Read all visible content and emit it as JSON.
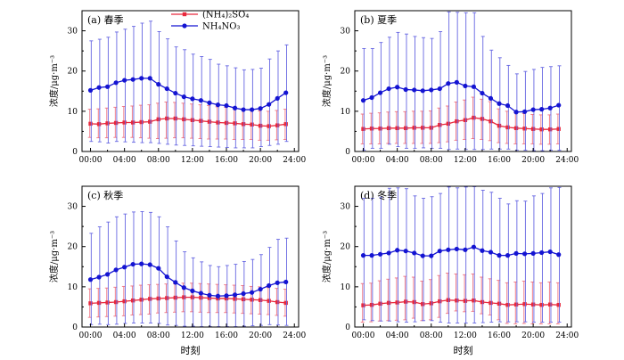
{
  "x_axis_label": "时刻",
  "legend": [
    {
      "label": "(NH₄)₂SO₄",
      "color": "#e8283c",
      "marker": "square"
    },
    {
      "label": "NH₄NO₃",
      "color": "#1414d2",
      "marker": "circle"
    }
  ],
  "chart_data": [
    {
      "type": "line",
      "title": "(a) 春季",
      "ylabel": "浓度/μg·m⁻³",
      "xlabel": "",
      "ylim": [
        0,
        35
      ],
      "yticks": [
        0,
        10,
        20,
        30
      ],
      "xlim": [
        -1,
        24.5
      ],
      "xtick_values": [
        0,
        4,
        8,
        12,
        16,
        20,
        24
      ],
      "xtick_labels": [
        "00:00",
        "04:00",
        "08:00",
        "12:00",
        "16:00",
        "20:00",
        "24:00"
      ],
      "x": [
        0,
        1,
        2,
        3,
        4,
        5,
        6,
        7,
        8,
        9,
        10,
        11,
        12,
        13,
        14,
        15,
        16,
        17,
        18,
        19,
        20,
        21,
        22,
        23
      ],
      "legend_position": "top-center",
      "series": [
        {
          "name": "(NH₄)₂SO₄",
          "values": [
            6.9,
            6.8,
            7.0,
            7.1,
            7.2,
            7.2,
            7.3,
            7.4,
            8.0,
            8.2,
            8.2,
            8.0,
            7.8,
            7.6,
            7.4,
            7.2,
            7.1,
            7.0,
            6.8,
            6.7,
            6.4,
            6.3,
            6.5,
            6.8
          ],
          "upper": [
            10.5,
            10.6,
            10.8,
            11.0,
            11.2,
            11.3,
            11.5,
            11.6,
            12.0,
            12.3,
            12.2,
            12.0,
            11.8,
            11.6,
            11.4,
            11.1,
            11.0,
            10.8,
            10.6,
            10.3,
            10.1,
            10.0,
            10.2,
            10.5
          ],
          "lower": [
            3.5,
            3.4,
            3.4,
            3.5,
            3.5,
            3.5,
            3.4,
            3.3,
            3.2,
            3.3,
            3.4,
            3.4,
            3.3,
            3.2,
            3.1,
            3.1,
            3.1,
            3.0,
            3.0,
            3.0,
            2.8,
            2.8,
            2.9,
            3.0
          ]
        },
        {
          "name": "NH₄NO₃",
          "values": [
            15.2,
            15.9,
            16.1,
            17.1,
            17.7,
            17.9,
            18.2,
            18.2,
            16.7,
            15.6,
            14.5,
            13.6,
            13.1,
            12.7,
            12.1,
            11.6,
            11.4,
            10.8,
            10.4,
            10.4,
            10.7,
            11.7,
            13.2,
            14.6
          ],
          "upper": [
            27.5,
            27.9,
            28.4,
            29.7,
            30.4,
            31.1,
            31.9,
            32.4,
            29.8,
            28.0,
            26.0,
            25.3,
            24.2,
            23.6,
            22.9,
            21.7,
            21.3,
            20.8,
            20.3,
            20.4,
            20.7,
            23.0,
            25.0,
            26.5
          ],
          "lower": [
            2.5,
            2.4,
            2.1,
            2.5,
            2.4,
            2.3,
            2.2,
            2.2,
            2.0,
            1.8,
            1.6,
            1.5,
            1.4,
            1.3,
            1.2,
            1.1,
            1.0,
            0.9,
            0.9,
            0.9,
            1.2,
            1.5,
            1.8,
            2.5
          ]
        }
      ]
    },
    {
      "type": "line",
      "title": "(b) 夏季",
      "ylabel": "浓度/μg·m⁻³",
      "xlabel": "",
      "ylim": [
        0,
        35
      ],
      "yticks": [
        0,
        10,
        20,
        30
      ],
      "xlim": [
        -1,
        24.5
      ],
      "xtick_values": [
        0,
        4,
        8,
        12,
        16,
        20,
        24
      ],
      "xtick_labels": [
        "00:00",
        "04:00",
        "08:00",
        "12:00",
        "16:00",
        "20:00",
        "24:00"
      ],
      "x": [
        0,
        1,
        2,
        3,
        4,
        5,
        6,
        7,
        8,
        9,
        10,
        11,
        12,
        13,
        14,
        15,
        16,
        17,
        18,
        19,
        20,
        21,
        22,
        23
      ],
      "series": [
        {
          "name": "(NH₄)₂SO₄",
          "values": [
            5.6,
            5.7,
            5.7,
            5.8,
            5.8,
            5.8,
            5.9,
            5.9,
            5.9,
            6.6,
            6.9,
            7.5,
            7.8,
            8.4,
            8.1,
            7.5,
            6.4,
            6.0,
            5.8,
            5.7,
            5.6,
            5.5,
            5.5,
            5.6
          ],
          "upper": [
            9.3,
            9.5,
            9.6,
            9.8,
            9.9,
            9.9,
            10.0,
            10.0,
            10.1,
            10.8,
            11.3,
            12.3,
            12.8,
            13.5,
            13.0,
            12.4,
            10.6,
            10.0,
            9.6,
            9.4,
            9.2,
            9.1,
            9.1,
            9.3
          ],
          "lower": [
            1.9,
            1.9,
            1.9,
            2.0,
            2.0,
            2.0,
            2.0,
            2.0,
            2.0,
            2.2,
            2.4,
            2.8,
            3.0,
            3.2,
            3.0,
            2.7,
            2.2,
            2.0,
            1.9,
            1.9,
            1.9,
            1.8,
            1.8,
            1.9
          ]
        },
        {
          "name": "NH₄NO₃",
          "values": [
            12.7,
            13.4,
            14.6,
            15.6,
            16.0,
            15.4,
            15.3,
            15.1,
            15.3,
            15.6,
            16.9,
            17.2,
            16.3,
            16.1,
            14.5,
            13.2,
            11.9,
            11.4,
            9.8,
            9.9,
            10.4,
            10.5,
            10.8,
            11.5
          ],
          "upper": [
            25.6,
            25.6,
            27.1,
            28.4,
            29.6,
            29.2,
            28.6,
            28.3,
            28.1,
            29.8,
            34.7,
            34.6,
            34.5,
            34.5,
            28.6,
            25.2,
            23.3,
            21.4,
            19.3,
            19.9,
            20.4,
            20.9,
            21.1,
            21.3
          ],
          "lower": [
            0.3,
            0.8,
            0.8,
            1.8,
            1.2,
            0.8,
            0.8,
            0.9,
            0.8,
            0.8,
            0.5,
            0.6,
            0.5,
            0.5,
            0.5,
            0.6,
            0.6,
            0.6,
            0.3,
            0.3,
            0.2,
            0.2,
            0.3,
            0.3
          ]
        }
      ]
    },
    {
      "type": "line",
      "title": "(c) 秋季",
      "ylabel": "浓度/μg·m⁻³",
      "xlabel": "时刻",
      "ylim": [
        0,
        35
      ],
      "yticks": [
        0,
        10,
        20,
        30
      ],
      "xlim": [
        -1,
        24.5
      ],
      "xtick_values": [
        0,
        4,
        8,
        12,
        16,
        20,
        24
      ],
      "xtick_labels": [
        "00:00",
        "04:00",
        "08:00",
        "12:00",
        "16:00",
        "20:00",
        "24:00"
      ],
      "x": [
        0,
        1,
        2,
        3,
        4,
        5,
        6,
        7,
        8,
        9,
        10,
        11,
        12,
        13,
        14,
        15,
        16,
        17,
        18,
        19,
        20,
        21,
        22,
        23
      ],
      "series": [
        {
          "name": "(NH₄)₂SO₄",
          "values": [
            5.9,
            6.0,
            6.1,
            6.2,
            6.4,
            6.6,
            6.8,
            7.0,
            7.1,
            7.2,
            7.3,
            7.4,
            7.4,
            7.3,
            7.2,
            7.1,
            7.1,
            7.0,
            6.9,
            6.8,
            6.7,
            6.5,
            6.2,
            6.0
          ],
          "upper": [
            9.5,
            9.6,
            9.7,
            9.9,
            10.1,
            10.2,
            10.4,
            10.5,
            10.6,
            10.7,
            10.8,
            10.9,
            10.9,
            10.8,
            10.7,
            10.6,
            10.5,
            10.4,
            10.3,
            10.1,
            10.0,
            9.8,
            9.6,
            9.4
          ],
          "lower": [
            2.4,
            2.5,
            2.6,
            2.7,
            2.8,
            3.0,
            3.1,
            3.2,
            3.5,
            3.6,
            3.7,
            3.8,
            3.8,
            3.7,
            3.6,
            3.6,
            3.6,
            3.5,
            3.4,
            3.3,
            3.2,
            3.1,
            2.9,
            2.7
          ]
        },
        {
          "name": "NH₄NO₃",
          "values": [
            11.8,
            12.4,
            13.1,
            14.2,
            14.9,
            15.6,
            15.7,
            15.5,
            14.6,
            12.5,
            11.1,
            9.8,
            9.0,
            8.4,
            7.9,
            7.7,
            7.8,
            8.0,
            8.3,
            8.6,
            9.4,
            10.3,
            11.0,
            11.2
          ],
          "upper": [
            23.3,
            24.9,
            26.1,
            27.4,
            28.1,
            28.6,
            28.7,
            28.5,
            27.4,
            24.9,
            21.4,
            18.7,
            17.2,
            16.2,
            15.3,
            15.0,
            15.3,
            15.6,
            16.3,
            16.8,
            18.0,
            19.8,
            21.8,
            22.1
          ],
          "lower": [
            0.6,
            0.7,
            0.6,
            0.7,
            0.9,
            1.0,
            1.0,
            1.0,
            0.9,
            0.5,
            0.4,
            0.2,
            0.2,
            0.1,
            0.1,
            0.1,
            0.1,
            0.1,
            0.2,
            0.3,
            0.4,
            0.6,
            0.5,
            0.4
          ]
        }
      ]
    },
    {
      "type": "line",
      "title": "(d) 冬季",
      "ylabel": "浓度/μg·m⁻³",
      "xlabel": "时刻",
      "ylim": [
        0,
        35
      ],
      "yticks": [
        0,
        10,
        20,
        30
      ],
      "xlim": [
        -1,
        24.5
      ],
      "xtick_values": [
        0,
        4,
        8,
        12,
        16,
        20,
        24
      ],
      "xtick_labels": [
        "00:00",
        "04:00",
        "08:00",
        "12:00",
        "16:00",
        "20:00",
        "24:00"
      ],
      "x": [
        0,
        1,
        2,
        3,
        4,
        5,
        6,
        7,
        8,
        9,
        10,
        11,
        12,
        13,
        14,
        15,
        16,
        17,
        18,
        19,
        20,
        21,
        22,
        23
      ],
      "series": [
        {
          "name": "(NH₄)₂SO₄",
          "values": [
            5.4,
            5.5,
            5.8,
            6.0,
            6.1,
            6.3,
            6.2,
            5.7,
            5.9,
            6.4,
            6.7,
            6.6,
            6.5,
            6.6,
            6.2,
            6.0,
            5.8,
            5.5,
            5.6,
            5.7,
            5.6,
            5.5,
            5.6,
            5.5
          ],
          "upper": [
            10.8,
            10.9,
            11.5,
            11.9,
            12.2,
            12.6,
            12.4,
            11.4,
            11.8,
            12.8,
            13.4,
            13.2,
            13.0,
            13.2,
            12.4,
            12.0,
            11.6,
            11.0,
            11.2,
            11.4,
            11.2,
            11.0,
            11.2,
            11.0
          ],
          "lower": [
            1.2,
            1.3,
            1.5,
            1.6,
            1.7,
            1.8,
            2.2,
            1.6,
            1.8,
            2.4,
            3.4,
            4.0,
            3.8,
            3.9,
            3.3,
            3.0,
            1.8,
            0.9,
            0.8,
            0.9,
            0.8,
            0.8,
            0.8,
            0.8
          ]
        },
        {
          "name": "NH₄NO₃",
          "values": [
            17.8,
            17.8,
            18.1,
            18.4,
            19.1,
            18.9,
            18.4,
            17.7,
            17.7,
            18.9,
            19.2,
            19.4,
            19.2,
            19.9,
            19.0,
            18.6,
            17.8,
            17.8,
            18.3,
            18.2,
            18.3,
            18.5,
            18.7,
            18.0
          ],
          "upper": [
            32.0,
            32.0,
            32.3,
            34.5,
            34.6,
            34.4,
            32.6,
            32.0,
            32.4,
            33.2,
            34.8,
            34.6,
            34.8,
            34.9,
            34.0,
            33.5,
            32.0,
            30.6,
            31.4,
            31.3,
            32.6,
            33.2,
            34.6,
            34.7
          ],
          "lower": [
            1.8,
            1.6,
            1.5,
            1.5,
            1.3,
            1.2,
            1.3,
            1.6,
            1.6,
            1.2,
            1.0,
            1.0,
            1.0,
            1.0,
            1.1,
            1.2,
            1.3,
            1.3,
            1.3,
            1.3,
            1.2,
            1.2,
            1.2,
            1.2
          ]
        }
      ]
    }
  ]
}
